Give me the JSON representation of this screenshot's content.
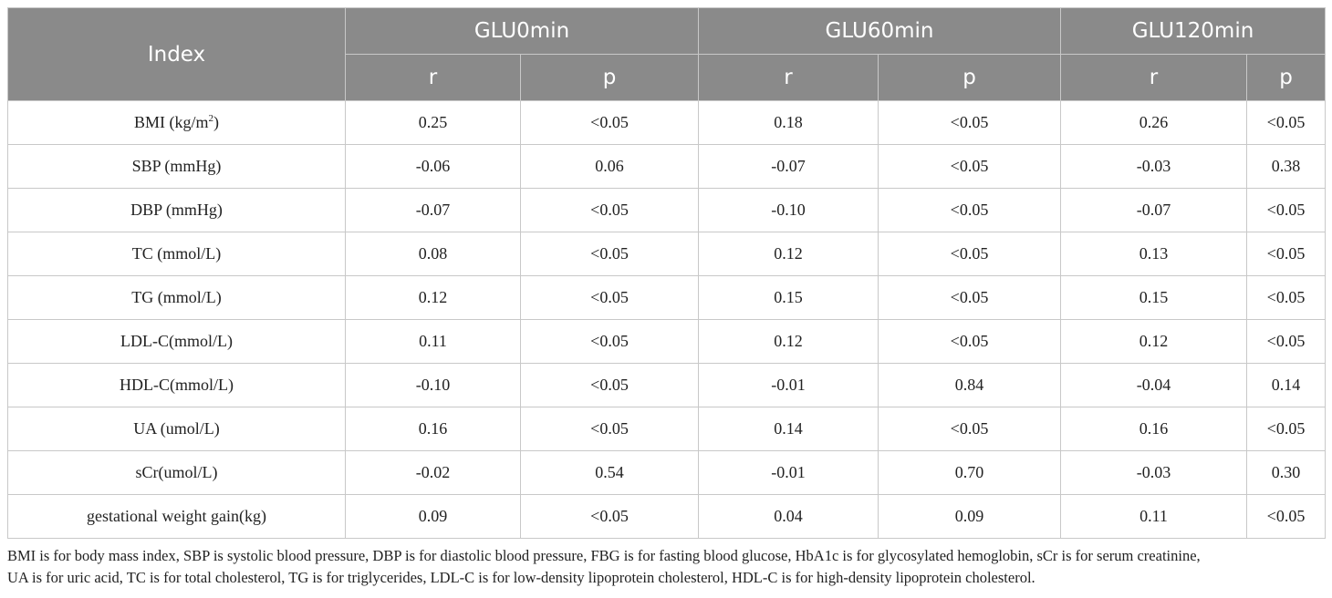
{
  "table": {
    "index_header": "Index",
    "groups": [
      "GLU0min",
      "GLU60min",
      "GLU120min"
    ],
    "sub_headers": [
      "r",
      "p",
      "r",
      "p",
      "r",
      "p"
    ],
    "rows": [
      {
        "index": "BMI (kg/m",
        "index_sup": "2",
        "index_tail": ")",
        "values": [
          "0.25",
          "<0.05",
          "0.18",
          "<0.05",
          "0.26",
          "<0.05"
        ]
      },
      {
        "index": "SBP (mmHg)",
        "index_sup": "",
        "index_tail": "",
        "values": [
          "-0.06",
          "0.06",
          "-0.07",
          "<0.05",
          "-0.03",
          "0.38"
        ]
      },
      {
        "index": "DBP (mmHg)",
        "index_sup": "",
        "index_tail": "",
        "values": [
          "-0.07",
          "<0.05",
          "-0.10",
          "<0.05",
          "-0.07",
          "<0.05"
        ]
      },
      {
        "index": "TC (mmol/L)",
        "index_sup": "",
        "index_tail": "",
        "values": [
          "0.08",
          "<0.05",
          "0.12",
          "<0.05",
          "0.13",
          "<0.05"
        ]
      },
      {
        "index": "TG (mmol/L)",
        "index_sup": "",
        "index_tail": "",
        "values": [
          "0.12",
          "<0.05",
          "0.15",
          "<0.05",
          "0.15",
          "<0.05"
        ]
      },
      {
        "index": "LDL-C(mmol/L)",
        "index_sup": "",
        "index_tail": "",
        "values": [
          "0.11",
          "<0.05",
          "0.12",
          "<0.05",
          "0.12",
          "<0.05"
        ]
      },
      {
        "index": "HDL-C(mmol/L)",
        "index_sup": "",
        "index_tail": "",
        "values": [
          "-0.10",
          "<0.05",
          "-0.01",
          "0.84",
          "-0.04",
          "0.14"
        ]
      },
      {
        "index": "UA (umol/L)",
        "index_sup": "",
        "index_tail": "",
        "values": [
          "0.16",
          "<0.05",
          "0.14",
          "<0.05",
          "0.16",
          "<0.05"
        ]
      },
      {
        "index": "sCr(umol/L)",
        "index_sup": "",
        "index_tail": "",
        "values": [
          "-0.02",
          "0.54",
          "-0.01",
          "0.70",
          "-0.03",
          "0.30"
        ]
      },
      {
        "index": "gestational weight gain(kg)",
        "index_sup": "",
        "index_tail": "",
        "values": [
          "0.09",
          "<0.05",
          "0.04",
          "0.09",
          "0.11",
          "<0.05"
        ]
      }
    ]
  },
  "footnote": {
    "line1": "BMI is for body mass index, SBP is systolic blood pressure, DBP is for diastolic blood pressure, FBG is for fasting blood glucose, HbA1c is for glycosylated hemoglobin, sCr is for serum creatinine,",
    "line2": "UA is for uric acid, TC is for total cholesterol, TG is for triglycerides, LDL-C is for low-density lipoprotein cholesterol, HDL-C is for high-density lipoprotein cholesterol."
  },
  "colors": {
    "header_bg": "#8a8a8a",
    "header_text": "#ffffff",
    "border": "#c8c8c8"
  }
}
